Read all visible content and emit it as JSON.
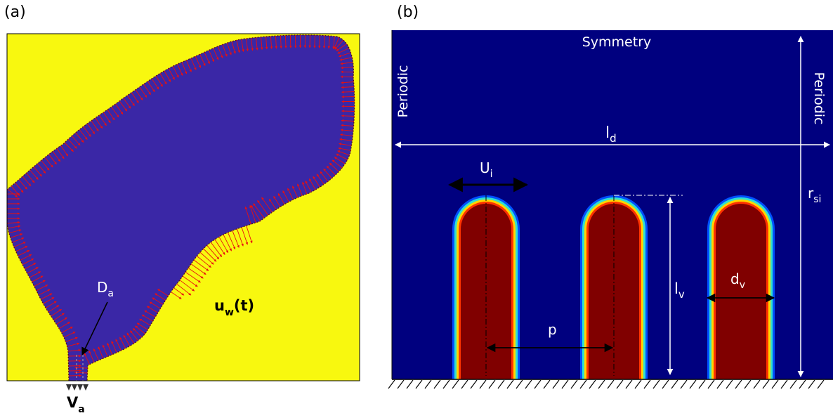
{
  "panel_a": {
    "label": "(a)",
    "colors": {
      "background": "#f8f80f",
      "domain": "#3a27a6",
      "vectors": "#e81010",
      "outline": "#000000"
    },
    "annotations": {
      "D_main": "D",
      "D_sub": "a",
      "u_main": "u",
      "u_sub": "w",
      "u_arg": "(t)",
      "V_main": "V",
      "V_sub": "a"
    }
  },
  "panel_b": {
    "label": "(b)",
    "colors": {
      "background": "#00007f",
      "rod": "#800000",
      "edge_hot": "#ff3300",
      "edge_warm": "#ffd500",
      "edge_cool": "#30e0d0",
      "edge_cold": "#0050ff",
      "text": "#ffffff"
    },
    "boundaries": {
      "top": "Symmetry",
      "left": "Periodic",
      "right": "Periodic"
    },
    "dimensions": {
      "ld_main": "l",
      "ld_sub": "d",
      "ui_main": "U",
      "ui_sub": "i",
      "rsi_main": "r",
      "rsi_sub": "si",
      "lv_main": "l",
      "lv_sub": "v",
      "dv_main": "d",
      "dv_sub": "v",
      "p": "p"
    },
    "rod_count": 3
  }
}
